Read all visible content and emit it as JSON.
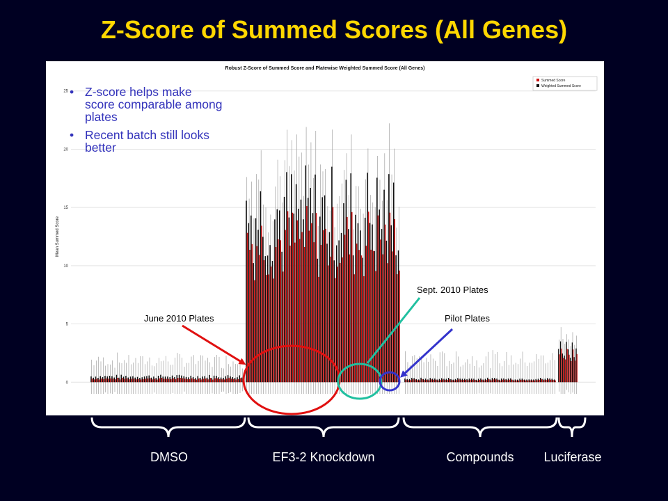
{
  "slide": {
    "title": "Z-Score of Summed Scores (All Genes)"
  },
  "bullets": [
    "Z-score helps make score comparable among plates",
    "Recent batch still looks better"
  ],
  "annotations": {
    "june": {
      "label": "June 2010 Plates",
      "color": "#e01010"
    },
    "sept": {
      "label": "Sept. 2010 Plates",
      "color": "#20c0a0"
    },
    "pilot": {
      "label": "Pilot Plates",
      "color": "#3333cc"
    }
  },
  "groups": [
    {
      "label": "DMSO"
    },
    {
      "label": "EF3-2 Knockdown"
    },
    {
      "label": "Compounds"
    },
    {
      "label": "Luciferase"
    }
  ],
  "chart_data": {
    "type": "bar",
    "title": "Robust Z-Score of Summed Score and Platewise Weighted Summed Score (All Genes)",
    "xlabel": "",
    "ylabel": "Mean Summed Score",
    "ylim": [
      -1,
      26
    ],
    "yticks": [
      0,
      5,
      10,
      15,
      20,
      25
    ],
    "grid": true,
    "legend": {
      "position": "top-right"
    },
    "colors": {
      "summed": "#cc1111",
      "weighted": "#111111",
      "errorbar": "#a0a0a0"
    },
    "series": [
      {
        "name": "Summed Score"
      },
      {
        "name": "Weighted Summed Score"
      }
    ],
    "segments": [
      {
        "group": "DMSO",
        "count": 66,
        "mean": 0.3,
        "err": 1.3,
        "weighted": 0.5
      },
      {
        "group": "EF3-2 Knockdown",
        "count": 65,
        "mean": 12.0,
        "err": 3.0,
        "weighted": 14.5
      },
      {
        "group": "Compounds",
        "count": 66,
        "mean": 0.2,
        "err": 1.6,
        "weighted": 0.3
      },
      {
        "group": "Luciferase",
        "count": 10,
        "mean": 2.5,
        "err": 1.0,
        "weighted": 3.0
      }
    ]
  }
}
